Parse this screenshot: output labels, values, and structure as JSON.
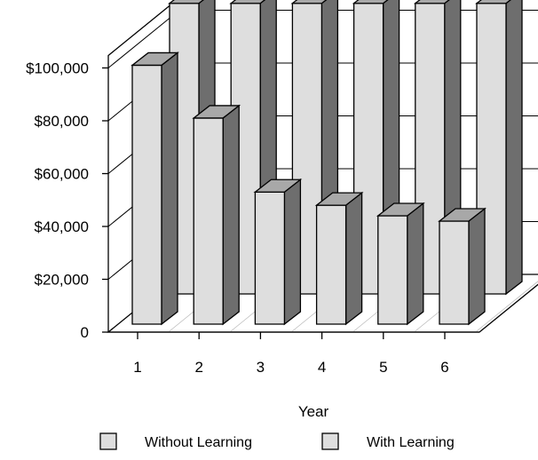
{
  "chart_data": {
    "type": "bar",
    "view": "3d-clustered-depth",
    "categories": [
      "1",
      "2",
      "3",
      "4",
      "5",
      "6"
    ],
    "series": [
      {
        "name": "Without Learning",
        "values": [
          110000,
          110000,
          110000,
          110000,
          110000,
          110000
        ]
      },
      {
        "name": "With Learning",
        "values": [
          98000,
          78000,
          50000,
          45000,
          41000,
          39000
        ]
      }
    ],
    "y_ticks": [
      "0",
      "$20,000",
      "$40,000",
      "$60,000",
      "$80,000",
      "$100,000"
    ],
    "y_tick_values": [
      0,
      20000,
      40000,
      60000,
      80000,
      100000
    ],
    "ylim": [
      0,
      100000
    ],
    "xlabel": "Year",
    "ylabel": "",
    "grid": true,
    "legend_position": "bottom",
    "colors": {
      "bar_front": "#dedede",
      "bar_side": "#6e6e6e",
      "bar_top": "#a8a8a8",
      "floor": "#ffffff",
      "line": "#000000"
    }
  }
}
